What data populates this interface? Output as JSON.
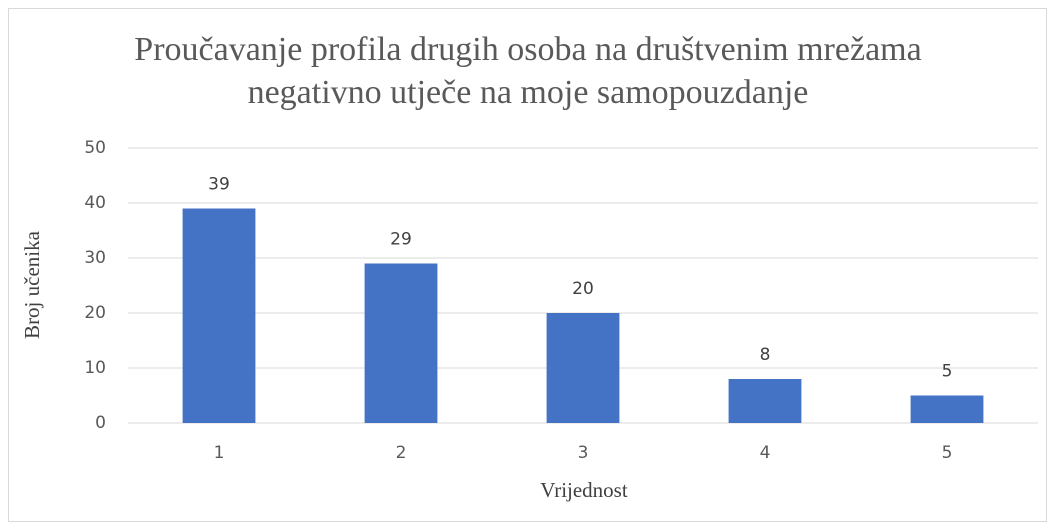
{
  "chart_data": {
    "type": "bar",
    "title": "Proučavanje profila drugih osoba na društvenim mrežama negativno utječe na moje samopouzdanje",
    "x_label": "Vrijednost",
    "y_label": "Broj učenika",
    "categories": [
      "1",
      "2",
      "3",
      "4",
      "5"
    ],
    "values": [
      39,
      29,
      20,
      8,
      5
    ],
    "color": "#4472c4",
    "ylim": [
      0,
      50
    ],
    "yticks": [
      0,
      10,
      20,
      30,
      40,
      50
    ],
    "grid": true
  }
}
